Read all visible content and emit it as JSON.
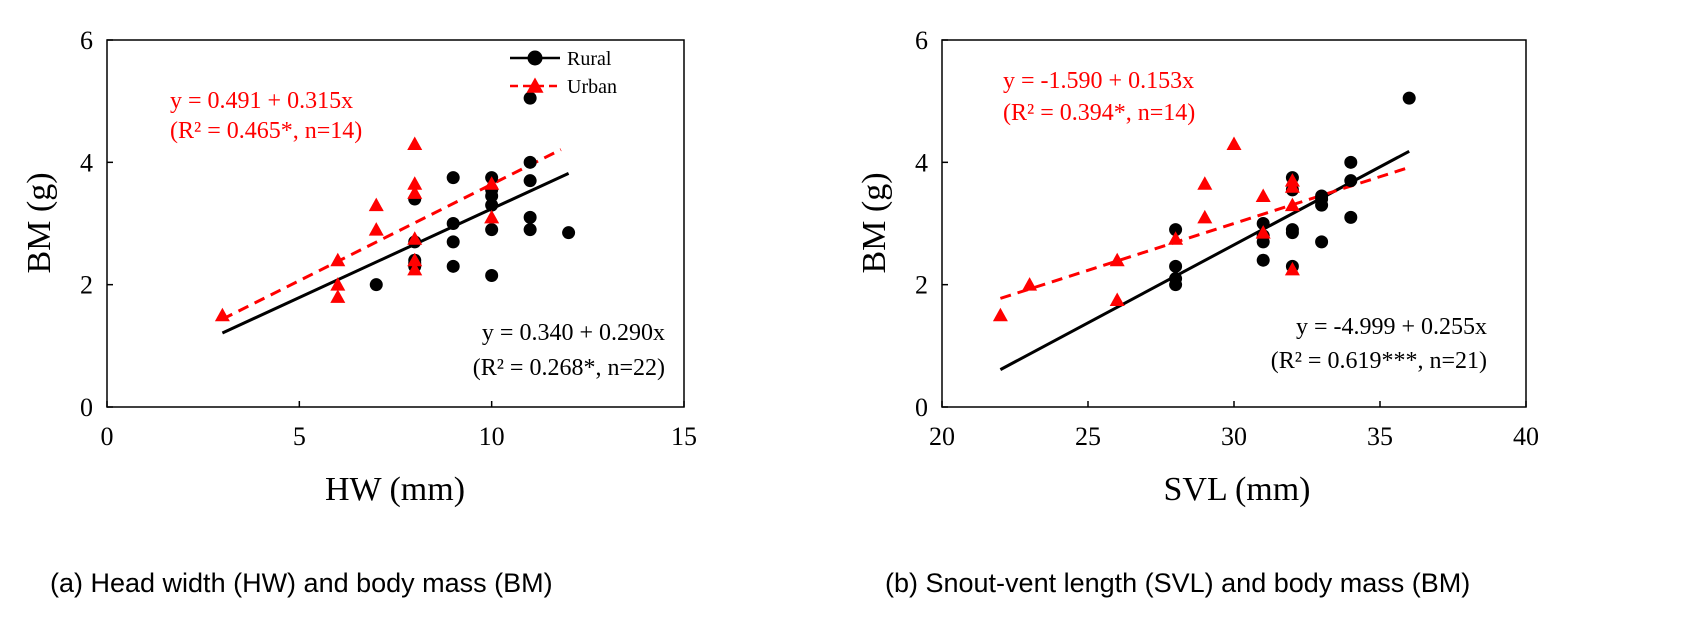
{
  "chart_data": [
    {
      "type": "scatter",
      "panel_caption": "(a) Head width (HW) and body mass (BM)",
      "xlabel": "HW (mm)",
      "ylabel": "BM (g)",
      "xlim": [
        0,
        15
      ],
      "ylim": [
        0,
        6
      ],
      "xticks": [
        "0",
        "5",
        "10",
        "15"
      ],
      "yticks": [
        "0",
        "2",
        "4",
        "6"
      ],
      "legend": {
        "position": "top-right",
        "entries": [
          "Rural",
          "Urban"
        ]
      },
      "series": [
        {
          "name": "Rural",
          "color": "#000000",
          "marker": "circle",
          "points": [
            [
              7,
              2.0
            ],
            [
              8,
              2.3
            ],
            [
              8,
              2.4
            ],
            [
              8,
              2.7
            ],
            [
              8,
              3.4
            ],
            [
              9,
              2.3
            ],
            [
              9,
              2.7
            ],
            [
              9,
              3.0
            ],
            [
              9,
              3.75
            ],
            [
              10,
              2.15
            ],
            [
              10,
              2.9
            ],
            [
              10,
              3.3
            ],
            [
              10,
              3.45
            ],
            [
              10,
              3.55
            ],
            [
              10,
              3.75
            ],
            [
              11,
              2.9
            ],
            [
              11,
              3.1
            ],
            [
              11,
              3.7
            ],
            [
              11,
              4.0
            ],
            [
              11,
              5.05
            ],
            [
              12,
              2.85
            ],
            [
              8,
              2.35
            ]
          ],
          "fit": {
            "intercept": 0.34,
            "slope": 0.29,
            "x_range": [
              3,
              12
            ],
            "style": "solid"
          },
          "equation": "y = 0.340 + 0.290x",
          "stats": "(R² = 0.268*, n=22)"
        },
        {
          "name": "Urban",
          "color": "#ff0000",
          "marker": "triangle",
          "points": [
            [
              3,
              1.5
            ],
            [
              6,
              1.8
            ],
            [
              6,
              2.0
            ],
            [
              6,
              2.4
            ],
            [
              7,
              2.9
            ],
            [
              7,
              3.3
            ],
            [
              8,
              2.25
            ],
            [
              8,
              2.4
            ],
            [
              8,
              2.75
            ],
            [
              8,
              3.5
            ],
            [
              8,
              3.65
            ],
            [
              8,
              4.3
            ],
            [
              10,
              3.1
            ],
            [
              10,
              3.65
            ]
          ],
          "fit": {
            "intercept": 0.491,
            "slope": 0.315,
            "x_range": [
              3,
              11.8
            ],
            "style": "dashed"
          },
          "equation": "y = 0.491 + 0.315x",
          "stats": "(R² = 0.465*, n=14)"
        }
      ]
    },
    {
      "type": "scatter",
      "panel_caption": "(b) Snout-vent length (SVL) and body mass (BM)",
      "xlabel": "SVL (mm)",
      "ylabel": "BM (g)",
      "xlim": [
        20,
        40
      ],
      "ylim": [
        0,
        6
      ],
      "xticks": [
        "20",
        "25",
        "30",
        "35",
        "40"
      ],
      "yticks": [
        "0",
        "2",
        "4",
        "6"
      ],
      "series": [
        {
          "name": "Rural",
          "color": "#000000",
          "marker": "circle",
          "points": [
            [
              28,
              2.0
            ],
            [
              28,
              2.1
            ],
            [
              28,
              2.3
            ],
            [
              28,
              2.9
            ],
            [
              31,
              2.4
            ],
            [
              31,
              2.7
            ],
            [
              31,
              2.8
            ],
            [
              31,
              3.0
            ],
            [
              32,
              2.3
            ],
            [
              32,
              2.85
            ],
            [
              32,
              2.9
            ],
            [
              32,
              3.55
            ],
            [
              32,
              3.75
            ],
            [
              33,
              2.7
            ],
            [
              33,
              3.3
            ],
            [
              33,
              3.4
            ],
            [
              33,
              3.45
            ],
            [
              34,
              3.1
            ],
            [
              34,
              3.7
            ],
            [
              34,
              4.0
            ],
            [
              36,
              5.05
            ]
          ],
          "fit": {
            "intercept": -4.999,
            "slope": 0.255,
            "x_range": [
              22,
              36
            ],
            "style": "solid"
          },
          "equation": "y = -4.999 + 0.255x",
          "stats": "(R² = 0.619***, n=21)"
        },
        {
          "name": "Urban",
          "color": "#ff0000",
          "marker": "triangle",
          "points": [
            [
              22,
              1.5
            ],
            [
              23,
              2.0
            ],
            [
              26,
              1.75
            ],
            [
              26,
              2.4
            ],
            [
              28,
              2.75
            ],
            [
              29,
              3.1
            ],
            [
              29,
              3.65
            ],
            [
              30,
              4.3
            ],
            [
              31,
              2.85
            ],
            [
              31,
              3.45
            ],
            [
              32,
              2.25
            ],
            [
              32,
              3.3
            ],
            [
              32,
              3.6
            ],
            [
              32,
              3.7
            ]
          ],
          "fit": {
            "intercept": -1.59,
            "slope": 0.153,
            "x_range": [
              22,
              36
            ],
            "style": "dashed"
          },
          "equation": "y = -1.590 + 0.153x",
          "stats": "(R² = 0.394*, n=14)"
        }
      ]
    }
  ]
}
